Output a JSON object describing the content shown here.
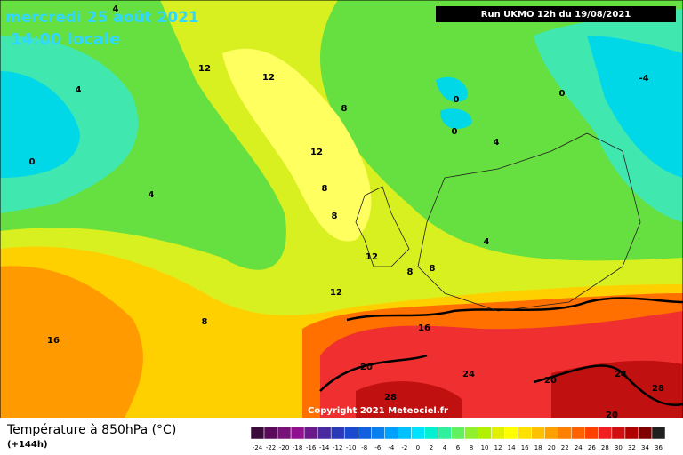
{
  "header": {
    "date": "mercredi 25 août 2021",
    "time": "14:00 locale",
    "run": "Run UKMO 12h du 19/08/2021"
  },
  "footer": {
    "title": "Température à 850hPa (°C)",
    "lead": "(+144h)",
    "copyright": "Copyright 2021 Meteociel.fr"
  },
  "scale": {
    "labels": [
      -24,
      -22,
      -20,
      -18,
      -16,
      -14,
      -12,
      -10,
      -8,
      -6,
      -4,
      -2,
      0,
      2,
      4,
      6,
      8,
      10,
      12,
      14,
      16,
      18,
      20,
      22,
      24,
      26,
      28,
      30,
      32,
      34,
      36
    ],
    "colors": [
      "#3a0a3a",
      "#5a0a5a",
      "#7a107a",
      "#901090",
      "#6a1a8a",
      "#4a2aa0",
      "#2a3ab8",
      "#1a4ad0",
      "#1060e0",
      "#0a80f0",
      "#00a0ff",
      "#00c0ff",
      "#00e0ff",
      "#00f0d0",
      "#30f0a0",
      "#60f060",
      "#90f030",
      "#b0f000",
      "#e0f000",
      "#ffff00",
      "#ffe000",
      "#ffc000",
      "#ffa000",
      "#ff8000",
      "#ff6000",
      "#ff4000",
      "#f02020",
      "#d01010",
      "#b00000",
      "#800000",
      "#202020"
    ]
  },
  "contour_labels": [
    "4",
    "12",
    "12",
    "4",
    "8",
    "0",
    "0",
    "0",
    "-4",
    "12",
    "4",
    "0",
    "4",
    "8",
    "8",
    "4",
    "12",
    "8",
    "8",
    "12",
    "8",
    "16",
    "16",
    "20",
    "24",
    "20",
    "24",
    "28",
    "28",
    "20"
  ]
}
